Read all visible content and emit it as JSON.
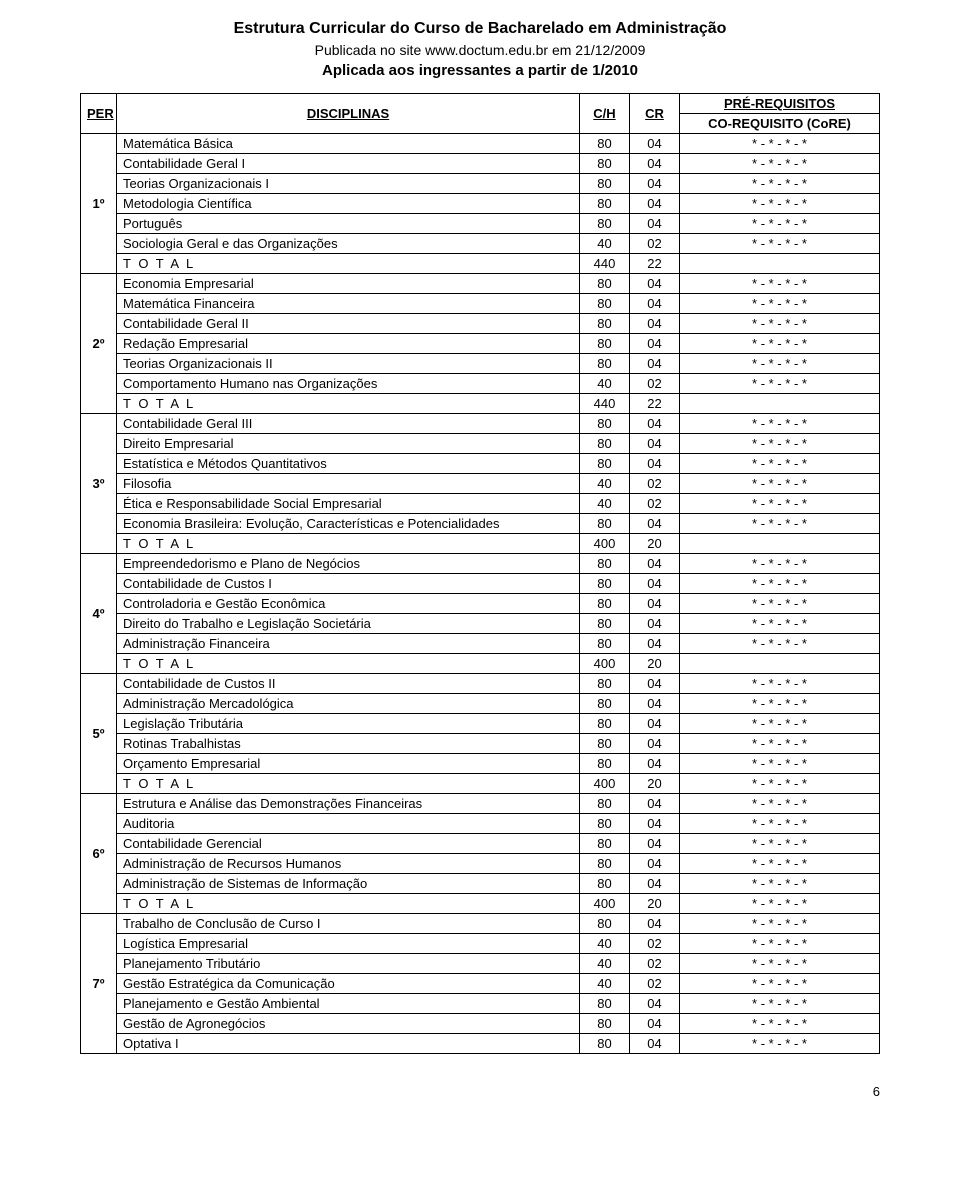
{
  "header": {
    "title": "Estrutura Curricular do Curso de Bacharelado em Administração",
    "subtitle1": "Publicada no site www.doctum.edu.br em 21/12/2009",
    "subtitle2": "Aplicada aos ingressantes a partir de 1/2010"
  },
  "columns": {
    "per": "PER",
    "disc": "DISCIPLINAS",
    "ch": "C/H",
    "cr": "CR",
    "req": "PRÉ-REQUISITOS",
    "req_sub": "CO-REQUISITO (CoRE)"
  },
  "prereq_mark": "* - * - * - *",
  "total_label": "T O T A L",
  "page_number": "6",
  "periods": [
    {
      "label": "1º",
      "rows": [
        {
          "disc": "Matemática Básica",
          "ch": "80",
          "cr": "04",
          "req": true
        },
        {
          "disc": "Contabilidade Geral I",
          "ch": "80",
          "cr": "04",
          "req": true
        },
        {
          "disc": "Teorias Organizacionais I",
          "ch": "80",
          "cr": "04",
          "req": true
        },
        {
          "disc": "Metodologia Científica",
          "ch": "80",
          "cr": "04",
          "req": true
        },
        {
          "disc": "Português",
          "ch": "80",
          "cr": "04",
          "req": true
        },
        {
          "disc": "Sociologia Geral e das Organizações",
          "ch": "40",
          "cr": "02",
          "req": true
        }
      ],
      "total": {
        "ch": "440",
        "cr": "22",
        "req": false
      }
    },
    {
      "label": "2º",
      "rows": [
        {
          "disc": "Economia Empresarial",
          "ch": "80",
          "cr": "04",
          "req": true
        },
        {
          "disc": "Matemática Financeira",
          "ch": "80",
          "cr": "04",
          "req": true
        },
        {
          "disc": "Contabilidade Geral II",
          "ch": "80",
          "cr": "04",
          "req": true
        },
        {
          "disc": "Redação Empresarial",
          "ch": "80",
          "cr": "04",
          "req": true
        },
        {
          "disc": "Teorias Organizacionais II",
          "ch": "80",
          "cr": "04",
          "req": true
        },
        {
          "disc": "Comportamento Humano nas Organizações",
          "ch": "40",
          "cr": "02",
          "req": true
        }
      ],
      "total": {
        "ch": "440",
        "cr": "22",
        "req": false
      }
    },
    {
      "label": "3º",
      "rows": [
        {
          "disc": "Contabilidade Geral III",
          "ch": "80",
          "cr": "04",
          "req": true
        },
        {
          "disc": "Direito Empresarial",
          "ch": "80",
          "cr": "04",
          "req": true
        },
        {
          "disc": "Estatística e Métodos Quantitativos",
          "ch": "80",
          "cr": "04",
          "req": true
        },
        {
          "disc": "Filosofia",
          "ch": "40",
          "cr": "02",
          "req": true
        },
        {
          "disc": "Ética e Responsabilidade Social Empresarial",
          "ch": "40",
          "cr": "02",
          "req": true
        },
        {
          "disc": "Economia Brasileira: Evolução, Características e Potencialidades",
          "ch": "80",
          "cr": "04",
          "req": true
        }
      ],
      "total": {
        "ch": "400",
        "cr": "20",
        "req": false
      }
    },
    {
      "label": "4º",
      "rows": [
        {
          "disc": "Empreendedorismo e Plano de Negócios",
          "ch": "80",
          "cr": "04",
          "req": true
        },
        {
          "disc": "Contabilidade de Custos I",
          "ch": "80",
          "cr": "04",
          "req": true
        },
        {
          "disc": "Controladoria e Gestão Econômica",
          "ch": "80",
          "cr": "04",
          "req": true
        },
        {
          "disc": "Direito do Trabalho e Legislação Societária",
          "ch": "80",
          "cr": "04",
          "req": true
        },
        {
          "disc": "Administração Financeira",
          "ch": "80",
          "cr": "04",
          "req": true
        }
      ],
      "total": {
        "ch": "400",
        "cr": "20",
        "req": false
      }
    },
    {
      "label": "5º",
      "rows": [
        {
          "disc": "Contabilidade de Custos II",
          "ch": "80",
          "cr": "04",
          "req": true
        },
        {
          "disc": "Administração Mercadológica",
          "ch": "80",
          "cr": "04",
          "req": true
        },
        {
          "disc": "Legislação Tributária",
          "ch": "80",
          "cr": "04",
          "req": true
        },
        {
          "disc": "Rotinas Trabalhistas",
          "ch": "80",
          "cr": "04",
          "req": true
        },
        {
          "disc": "Orçamento Empresarial",
          "ch": "80",
          "cr": "04",
          "req": true
        }
      ],
      "total": {
        "ch": "400",
        "cr": "20",
        "req": true
      }
    },
    {
      "label": "6º",
      "rows": [
        {
          "disc": "Estrutura e Análise das Demonstrações Financeiras",
          "ch": "80",
          "cr": "04",
          "req": true
        },
        {
          "disc": "Auditoria",
          "ch": "80",
          "cr": "04",
          "req": true
        },
        {
          "disc": "Contabilidade Gerencial",
          "ch": "80",
          "cr": "04",
          "req": true
        },
        {
          "disc": "Administração de Recursos Humanos",
          "ch": "80",
          "cr": "04",
          "req": true
        },
        {
          "disc": "Administração de Sistemas de Informação",
          "ch": "80",
          "cr": "04",
          "req": true
        }
      ],
      "total": {
        "ch": "400",
        "cr": "20",
        "req": true
      }
    },
    {
      "label": "7º",
      "rows": [
        {
          "disc": "Trabalho de Conclusão de Curso I",
          "ch": "80",
          "cr": "04",
          "req": true
        },
        {
          "disc": "Logística Empresarial",
          "ch": "40",
          "cr": "02",
          "req": true
        },
        {
          "disc": "Planejamento Tributário",
          "ch": "40",
          "cr": "02",
          "req": true
        },
        {
          "disc": "Gestão Estratégica da Comunicação",
          "ch": "40",
          "cr": "02",
          "req": true
        },
        {
          "disc": "Planejamento e Gestão Ambiental",
          "ch": "80",
          "cr": "04",
          "req": true
        },
        {
          "disc": "Gestão de Agronegócios",
          "ch": "80",
          "cr": "04",
          "req": true
        },
        {
          "disc": "Optativa I",
          "ch": "80",
          "cr": "04",
          "req": true
        }
      ],
      "total": null
    }
  ]
}
